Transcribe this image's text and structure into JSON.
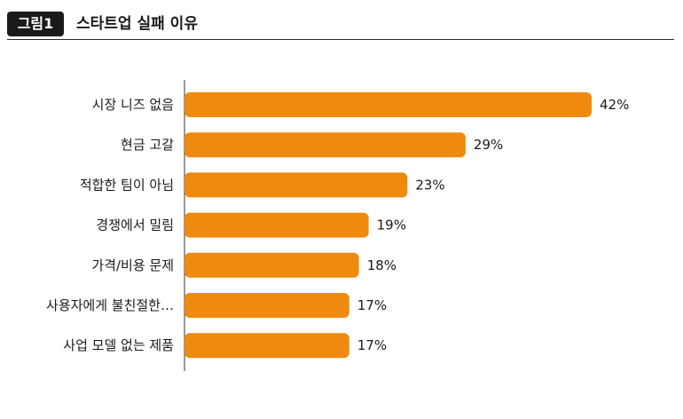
{
  "header": {
    "figure_label": "그림1",
    "title": "스타트업 실패 이유"
  },
  "colors": {
    "bar": "#ef8a0f",
    "badge_bg": "#1a1a1a",
    "axis": "#333333"
  },
  "chart_data": {
    "type": "bar",
    "orientation": "horizontal",
    "title": "스타트업 실패 이유",
    "categories": [
      "시장 니즈 없음",
      "현금 고갈",
      "적합한 팀이 아님",
      "경쟁에서 밀림",
      "가격/비용 문제",
      "사용자에게 불친절한…",
      "사업 모델 없는 제품"
    ],
    "values": [
      42,
      29,
      23,
      19,
      18,
      17,
      17
    ],
    "data_labels": [
      "42%",
      "29%",
      "23%",
      "19%",
      "18%",
      "17%",
      "17%"
    ],
    "value_suffix": "%",
    "xlim": [
      0,
      42
    ],
    "xlabel": "",
    "ylabel": "",
    "grid": false,
    "legend": "none"
  }
}
